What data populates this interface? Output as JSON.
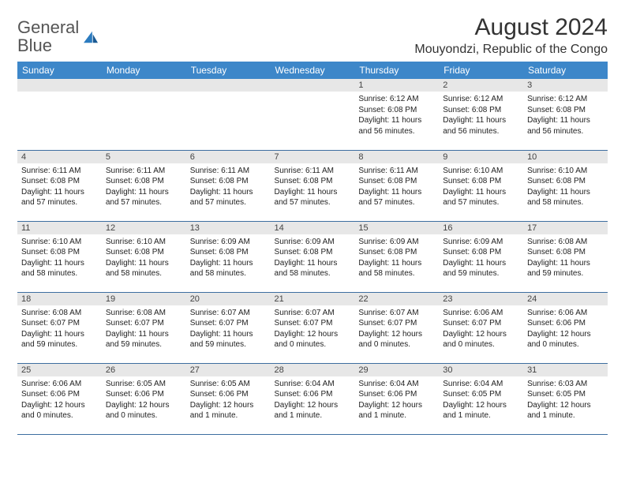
{
  "logo": {
    "textGray": "General",
    "textBlue": "Blue"
  },
  "title": "August 2024",
  "location": "Mouyondzi, Republic of the Congo",
  "colors": {
    "headerBg": "#3d87c9",
    "headerText": "#ffffff",
    "dayNumBg": "#e7e7e7",
    "rowBorder": "#3d6ea0",
    "logoBlue": "#2b7bbf"
  },
  "weekdays": [
    "Sunday",
    "Monday",
    "Tuesday",
    "Wednesday",
    "Thursday",
    "Friday",
    "Saturday"
  ],
  "weeks": [
    [
      {
        "day": "",
        "sunrise": "",
        "sunset": "",
        "daylight": ""
      },
      {
        "day": "",
        "sunrise": "",
        "sunset": "",
        "daylight": ""
      },
      {
        "day": "",
        "sunrise": "",
        "sunset": "",
        "daylight": ""
      },
      {
        "day": "",
        "sunrise": "",
        "sunset": "",
        "daylight": ""
      },
      {
        "day": "1",
        "sunrise": "Sunrise: 6:12 AM",
        "sunset": "Sunset: 6:08 PM",
        "daylight": "Daylight: 11 hours and 56 minutes."
      },
      {
        "day": "2",
        "sunrise": "Sunrise: 6:12 AM",
        "sunset": "Sunset: 6:08 PM",
        "daylight": "Daylight: 11 hours and 56 minutes."
      },
      {
        "day": "3",
        "sunrise": "Sunrise: 6:12 AM",
        "sunset": "Sunset: 6:08 PM",
        "daylight": "Daylight: 11 hours and 56 minutes."
      }
    ],
    [
      {
        "day": "4",
        "sunrise": "Sunrise: 6:11 AM",
        "sunset": "Sunset: 6:08 PM",
        "daylight": "Daylight: 11 hours and 57 minutes."
      },
      {
        "day": "5",
        "sunrise": "Sunrise: 6:11 AM",
        "sunset": "Sunset: 6:08 PM",
        "daylight": "Daylight: 11 hours and 57 minutes."
      },
      {
        "day": "6",
        "sunrise": "Sunrise: 6:11 AM",
        "sunset": "Sunset: 6:08 PM",
        "daylight": "Daylight: 11 hours and 57 minutes."
      },
      {
        "day": "7",
        "sunrise": "Sunrise: 6:11 AM",
        "sunset": "Sunset: 6:08 PM",
        "daylight": "Daylight: 11 hours and 57 minutes."
      },
      {
        "day": "8",
        "sunrise": "Sunrise: 6:11 AM",
        "sunset": "Sunset: 6:08 PM",
        "daylight": "Daylight: 11 hours and 57 minutes."
      },
      {
        "day": "9",
        "sunrise": "Sunrise: 6:10 AM",
        "sunset": "Sunset: 6:08 PM",
        "daylight": "Daylight: 11 hours and 57 minutes."
      },
      {
        "day": "10",
        "sunrise": "Sunrise: 6:10 AM",
        "sunset": "Sunset: 6:08 PM",
        "daylight": "Daylight: 11 hours and 58 minutes."
      }
    ],
    [
      {
        "day": "11",
        "sunrise": "Sunrise: 6:10 AM",
        "sunset": "Sunset: 6:08 PM",
        "daylight": "Daylight: 11 hours and 58 minutes."
      },
      {
        "day": "12",
        "sunrise": "Sunrise: 6:10 AM",
        "sunset": "Sunset: 6:08 PM",
        "daylight": "Daylight: 11 hours and 58 minutes."
      },
      {
        "day": "13",
        "sunrise": "Sunrise: 6:09 AM",
        "sunset": "Sunset: 6:08 PM",
        "daylight": "Daylight: 11 hours and 58 minutes."
      },
      {
        "day": "14",
        "sunrise": "Sunrise: 6:09 AM",
        "sunset": "Sunset: 6:08 PM",
        "daylight": "Daylight: 11 hours and 58 minutes."
      },
      {
        "day": "15",
        "sunrise": "Sunrise: 6:09 AM",
        "sunset": "Sunset: 6:08 PM",
        "daylight": "Daylight: 11 hours and 58 minutes."
      },
      {
        "day": "16",
        "sunrise": "Sunrise: 6:09 AM",
        "sunset": "Sunset: 6:08 PM",
        "daylight": "Daylight: 11 hours and 59 minutes."
      },
      {
        "day": "17",
        "sunrise": "Sunrise: 6:08 AM",
        "sunset": "Sunset: 6:08 PM",
        "daylight": "Daylight: 11 hours and 59 minutes."
      }
    ],
    [
      {
        "day": "18",
        "sunrise": "Sunrise: 6:08 AM",
        "sunset": "Sunset: 6:07 PM",
        "daylight": "Daylight: 11 hours and 59 minutes."
      },
      {
        "day": "19",
        "sunrise": "Sunrise: 6:08 AM",
        "sunset": "Sunset: 6:07 PM",
        "daylight": "Daylight: 11 hours and 59 minutes."
      },
      {
        "day": "20",
        "sunrise": "Sunrise: 6:07 AM",
        "sunset": "Sunset: 6:07 PM",
        "daylight": "Daylight: 11 hours and 59 minutes."
      },
      {
        "day": "21",
        "sunrise": "Sunrise: 6:07 AM",
        "sunset": "Sunset: 6:07 PM",
        "daylight": "Daylight: 12 hours and 0 minutes."
      },
      {
        "day": "22",
        "sunrise": "Sunrise: 6:07 AM",
        "sunset": "Sunset: 6:07 PM",
        "daylight": "Daylight: 12 hours and 0 minutes."
      },
      {
        "day": "23",
        "sunrise": "Sunrise: 6:06 AM",
        "sunset": "Sunset: 6:07 PM",
        "daylight": "Daylight: 12 hours and 0 minutes."
      },
      {
        "day": "24",
        "sunrise": "Sunrise: 6:06 AM",
        "sunset": "Sunset: 6:06 PM",
        "daylight": "Daylight: 12 hours and 0 minutes."
      }
    ],
    [
      {
        "day": "25",
        "sunrise": "Sunrise: 6:06 AM",
        "sunset": "Sunset: 6:06 PM",
        "daylight": "Daylight: 12 hours and 0 minutes."
      },
      {
        "day": "26",
        "sunrise": "Sunrise: 6:05 AM",
        "sunset": "Sunset: 6:06 PM",
        "daylight": "Daylight: 12 hours and 0 minutes."
      },
      {
        "day": "27",
        "sunrise": "Sunrise: 6:05 AM",
        "sunset": "Sunset: 6:06 PM",
        "daylight": "Daylight: 12 hours and 1 minute."
      },
      {
        "day": "28",
        "sunrise": "Sunrise: 6:04 AM",
        "sunset": "Sunset: 6:06 PM",
        "daylight": "Daylight: 12 hours and 1 minute."
      },
      {
        "day": "29",
        "sunrise": "Sunrise: 6:04 AM",
        "sunset": "Sunset: 6:06 PM",
        "daylight": "Daylight: 12 hours and 1 minute."
      },
      {
        "day": "30",
        "sunrise": "Sunrise: 6:04 AM",
        "sunset": "Sunset: 6:05 PM",
        "daylight": "Daylight: 12 hours and 1 minute."
      },
      {
        "day": "31",
        "sunrise": "Sunrise: 6:03 AM",
        "sunset": "Sunset: 6:05 PM",
        "daylight": "Daylight: 12 hours and 1 minute."
      }
    ]
  ]
}
